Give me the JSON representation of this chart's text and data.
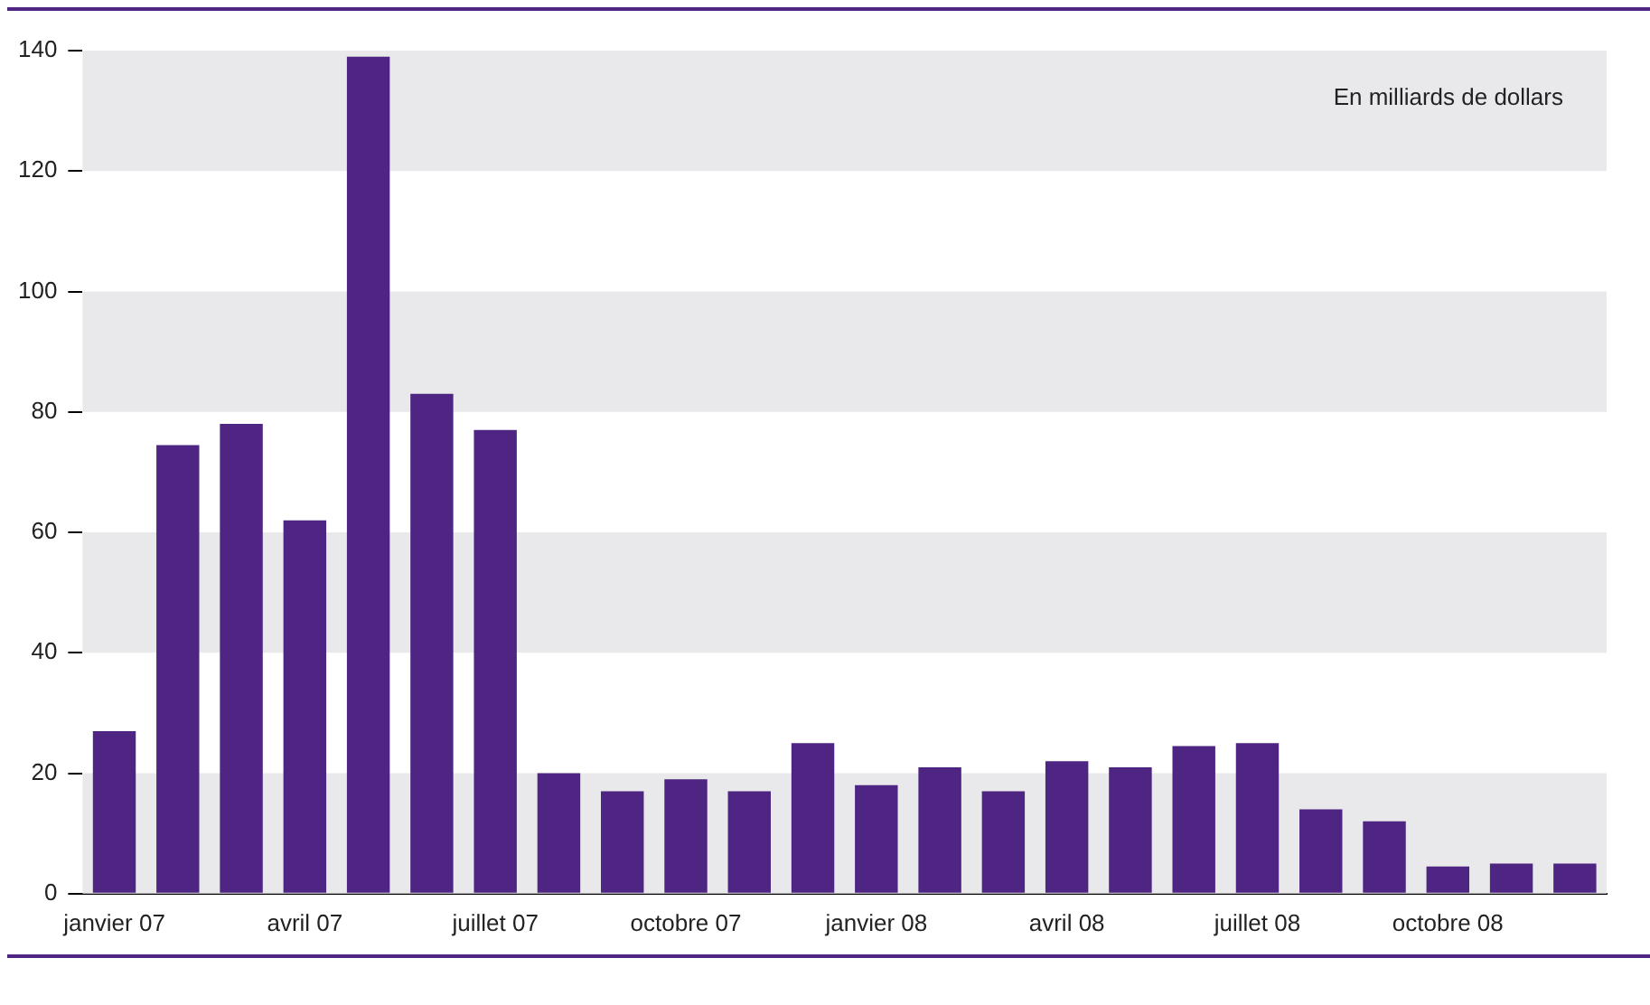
{
  "chart_data": {
    "type": "bar",
    "categories": [
      "janvier 07",
      null,
      null,
      "avril 07",
      null,
      null,
      "juillet 07",
      null,
      null,
      "octobre 07",
      null,
      null,
      "janvier 08",
      null,
      null,
      "avril 08",
      null,
      null,
      "juillet 08",
      null,
      null,
      "octobre 08",
      null,
      null
    ],
    "values": [
      27,
      74.5,
      78,
      62,
      139,
      83,
      77,
      20,
      17,
      19,
      17,
      25,
      18,
      21,
      17,
      22,
      21,
      24.5,
      25,
      14,
      12,
      4.5,
      5,
      5
    ],
    "color": "#4e2582",
    "ylim": [
      0,
      140
    ],
    "yticks": [
      0,
      20,
      40,
      60,
      80,
      100,
      120,
      140
    ],
    "annotations": [
      "En milliards de dollars"
    ]
  }
}
